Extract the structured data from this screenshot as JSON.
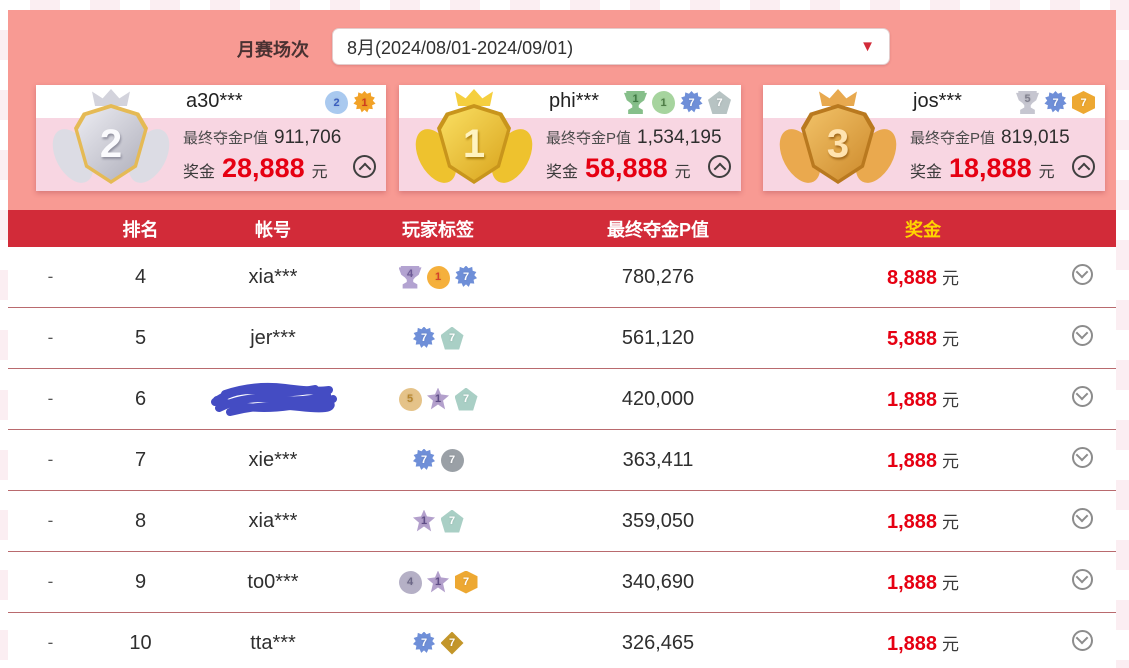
{
  "colors": {
    "salmon_bar": "#f89a93",
    "header_red": "#d22b39",
    "prize_yellow": "#ffd400",
    "prize_red": "#e60012",
    "card_pink": "#f8d6e2",
    "scribble_blue": "#3b43c0"
  },
  "filter": {
    "label": "月赛场次",
    "value": "8月(2024/08/01-2024/09/01)",
    "arrow_icon": "▼"
  },
  "labels": {
    "pvalue_label": "最终夺金P值",
    "prize_label": "奖金",
    "currency": "元"
  },
  "podium": [
    {
      "rank": "2",
      "medal": "silver",
      "account": "a30***",
      "pvalue": "911,706",
      "prize": "28,888",
      "badges": [
        {
          "shape": "blob",
          "bg": "#a9c9ef",
          "fg": "#3a5fc0",
          "num": "2"
        },
        {
          "shape": "gear",
          "bg": "#f2a227",
          "fg": "#d03a1f",
          "num": "1"
        }
      ]
    },
    {
      "rank": "1",
      "medal": "gold",
      "account": "phi***",
      "pvalue": "1,534,195",
      "prize": "58,888",
      "badges": [
        {
          "shape": "trophy",
          "bg": "#86bf8a",
          "fg": "#3f7a43",
          "num": "1"
        },
        {
          "shape": "blob",
          "bg": "#a6d49e",
          "fg": "#4d7d45",
          "num": "1"
        },
        {
          "shape": "gear",
          "bg": "#6f8fd8",
          "fg": "#ffffff",
          "num": "7"
        },
        {
          "shape": "pent",
          "bg": "#b7c3c3",
          "fg": "#ffffff",
          "num": "7"
        }
      ]
    },
    {
      "rank": "3",
      "medal": "bronze",
      "account": "jos***",
      "pvalue": "819,015",
      "prize": "18,888",
      "badges": [
        {
          "shape": "trophy",
          "bg": "#c6c6d0",
          "fg": "#80808e",
          "num": "5"
        },
        {
          "shape": "gear",
          "bg": "#6f8fd8",
          "fg": "#ffffff",
          "num": "7"
        },
        {
          "shape": "hex",
          "bg": "#eda832",
          "fg": "#ffffff",
          "num": "7"
        }
      ]
    }
  ],
  "table": {
    "headers": [
      "排名",
      "帐号",
      "玩家标签",
      "最终夺金P值",
      "奖金"
    ],
    "rows": [
      {
        "dash": "-",
        "rank": "4",
        "account": "xia***",
        "redacted": false,
        "pvalue": "780,276",
        "prize": "8,888",
        "badges": [
          {
            "shape": "trophy",
            "bg": "#b3a3d1",
            "fg": "#6d5a96",
            "num": "4"
          },
          {
            "shape": "blob",
            "bg": "#f5b03c",
            "fg": "#d6402a",
            "num": "1"
          },
          {
            "shape": "gear",
            "bg": "#6f8fd8",
            "fg": "#ffffff",
            "num": "7"
          }
        ]
      },
      {
        "dash": "-",
        "rank": "5",
        "account": "jer***",
        "redacted": false,
        "pvalue": "561,120",
        "prize": "5,888",
        "badges": [
          {
            "shape": "gear",
            "bg": "#6f8fd8",
            "fg": "#ffffff",
            "num": "7"
          },
          {
            "shape": "pent",
            "bg": "#a9cfc5",
            "fg": "#ffffff",
            "num": "7"
          }
        ]
      },
      {
        "dash": "-",
        "rank": "6",
        "account": "",
        "redacted": true,
        "pvalue": "420,000",
        "prize": "1,888",
        "badges": [
          {
            "shape": "blob",
            "bg": "#e5c389",
            "fg": "#b8872e",
            "num": "5"
          },
          {
            "shape": "star",
            "bg": "#b3a0cc",
            "fg": "#5f4d87",
            "num": "1"
          },
          {
            "shape": "pent",
            "bg": "#a9cfc5",
            "fg": "#ffffff",
            "num": "7"
          }
        ]
      },
      {
        "dash": "-",
        "rank": "7",
        "account": "xie***",
        "redacted": false,
        "pvalue": "363,411",
        "prize": "1,888",
        "badges": [
          {
            "shape": "gear",
            "bg": "#6f8fd8",
            "fg": "#ffffff",
            "num": "7"
          },
          {
            "shape": "circle",
            "bg": "#9aa0a6",
            "fg": "#ffffff",
            "num": "7"
          }
        ]
      },
      {
        "dash": "-",
        "rank": "8",
        "account": "xia***",
        "redacted": false,
        "pvalue": "359,050",
        "prize": "1,888",
        "badges": [
          {
            "shape": "star",
            "bg": "#b3a0cc",
            "fg": "#5f4d87",
            "num": "1"
          },
          {
            "shape": "pent",
            "bg": "#a9cfc5",
            "fg": "#ffffff",
            "num": "7"
          }
        ]
      },
      {
        "dash": "-",
        "rank": "9",
        "account": "to0***",
        "redacted": false,
        "pvalue": "340,690",
        "prize": "1,888",
        "badges": [
          {
            "shape": "blob",
            "bg": "#b5b0c6",
            "fg": "#6c6787",
            "num": "4"
          },
          {
            "shape": "star",
            "bg": "#b3a0cc",
            "fg": "#5f4d87",
            "num": "1"
          },
          {
            "shape": "hex",
            "bg": "#eda832",
            "fg": "#ffffff",
            "num": "7"
          }
        ]
      },
      {
        "dash": "-",
        "rank": "10",
        "account": "tta***",
        "redacted": false,
        "pvalue": "326,465",
        "prize": "1,888",
        "badges": [
          {
            "shape": "gear",
            "bg": "#6f8fd8",
            "fg": "#ffffff",
            "num": "7"
          },
          {
            "shape": "diamond",
            "bg": "#c3962a",
            "fg": "#ffffff",
            "num": "7"
          }
        ]
      }
    ]
  }
}
